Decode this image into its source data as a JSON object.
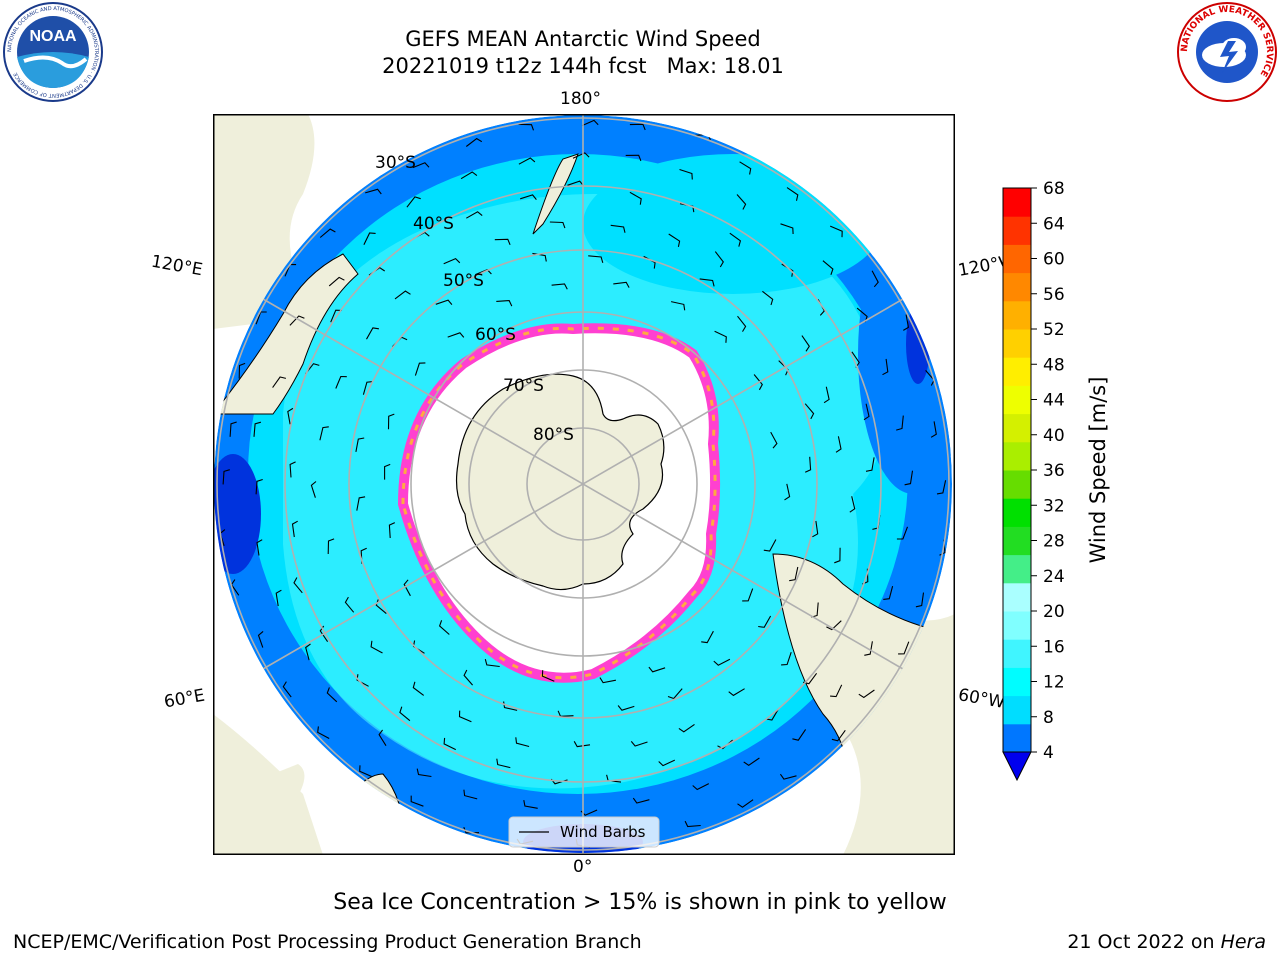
{
  "title": {
    "line1": "GEFS MEAN Antarctic Wind Speed",
    "line2": "20221019 t12z 144h fcst   Max: 18.01"
  },
  "map": {
    "longitude_labels": {
      "top": "180°",
      "bottom": "0°",
      "upper_left": "120°E",
      "upper_right": "120°W",
      "lower_left": "60°E",
      "lower_right": "60°W"
    },
    "latitude_labels": [
      "30°S",
      "40°S",
      "50°S",
      "60°S",
      "70°S",
      "80°S"
    ],
    "legend": {
      "label": "Wind Barbs"
    }
  },
  "colorbar": {
    "label": "Wind Speed [m/s]",
    "ticks": [
      4,
      8,
      12,
      16,
      20,
      24,
      28,
      32,
      36,
      40,
      44,
      48,
      52,
      56,
      60,
      64,
      68
    ],
    "colors": [
      "#0077ff",
      "#00ddff",
      "#00fdff",
      "#40f5ff",
      "#80ffff",
      "#aaffff",
      "#44ee88",
      "#22dd22",
      "#00e000",
      "#66dd00",
      "#aaee00",
      "#d4f000",
      "#eeff00",
      "#ffee00",
      "#ffd000",
      "#ffb000",
      "#ff8800",
      "#ff6600",
      "#ff3300",
      "#ff0000"
    ],
    "under_color": "#0000ee"
  },
  "colors": {
    "land": "#efefdb",
    "ice": "#ffffff",
    "ice_edge": "#ff40d0",
    "ice_edge2": "#ffaa40",
    "wind_low": "#0080ff",
    "wind_mid": "#00e0ff",
    "wind_high": "#50f8ff",
    "wind_dark": "#0033dd"
  },
  "caption": "Sea Ice Concentration > 15% is shown in pink to yellow",
  "footer": {
    "left": "NCEP/EMC/Verification Post Processing Product Generation Branch",
    "right_prefix": "21 Oct 2022 on ",
    "right_host": "Hera"
  },
  "logos": {
    "noaa": {
      "text": "NOAA",
      "ring_text": "NATIONAL OCEANIC AND ATMOSPHERIC ADMINISTRATION · U.S. DEPARTMENT OF COMMERCE"
    },
    "nws": {
      "ring_text": "NATIONAL WEATHER SERVICE"
    }
  }
}
